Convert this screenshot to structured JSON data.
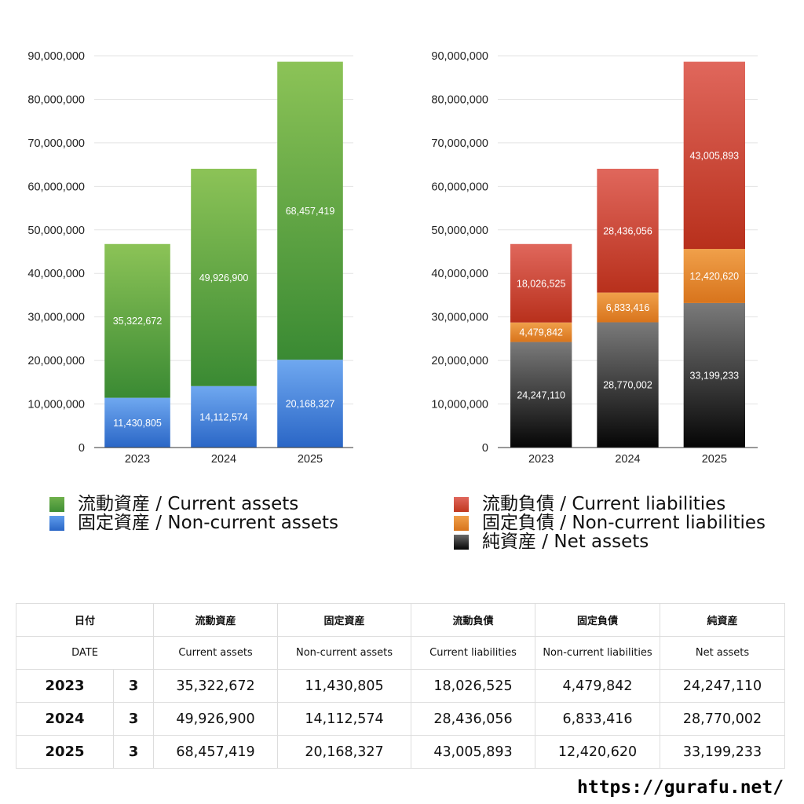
{
  "chart_data": [
    {
      "type": "bar",
      "stacked": true,
      "categories": [
        "2023",
        "2024",
        "2025"
      ],
      "ylim": [
        0,
        90000000
      ],
      "yticks": [
        "0",
        "10,000,000",
        "20,000,000",
        "30,000,000",
        "40,000,000",
        "50,000,000",
        "60,000,000",
        "70,000,000",
        "80,000,000",
        "90,000,000"
      ],
      "grid": true,
      "series": [
        {
          "name": "固定資産 / Non-current assets",
          "values": [
            11430805,
            14112574,
            20168327
          ],
          "labels": [
            "11,430,805",
            "14,112,574",
            "20,168,327"
          ],
          "color_top": "#6fa8f0",
          "color_bottom": "#2a66c6"
        },
        {
          "name": "流動資産 / Current assets",
          "values": [
            35322672,
            49926900,
            68457419
          ],
          "labels": [
            "35,322,672",
            "49,926,900",
            "68,457,419"
          ],
          "color_top": "#8cc357",
          "color_bottom": "#3a8a33"
        }
      ]
    },
    {
      "type": "bar",
      "stacked": true,
      "categories": [
        "2023",
        "2024",
        "2025"
      ],
      "ylim": [
        0,
        90000000
      ],
      "yticks": [
        "0",
        "10,000,000",
        "20,000,000",
        "30,000,000",
        "40,000,000",
        "50,000,000",
        "60,000,000",
        "70,000,000",
        "80,000,000",
        "90,000,000"
      ],
      "grid": true,
      "series": [
        {
          "name": "純資産 / Net assets",
          "values": [
            24247110,
            28770002,
            33199233
          ],
          "labels": [
            "24,247,110",
            "28,770,002",
            "33,199,233"
          ],
          "color_top": "#7a7a7a",
          "color_bottom": "#050505"
        },
        {
          "name": "固定負債 / Non-current liabilities",
          "values": [
            4479842,
            6833416,
            12420620
          ],
          "labels": [
            "4,479,842",
            "6,833,416",
            "12,420,620"
          ],
          "color_top": "#f0a04a",
          "color_bottom": "#d8741c"
        },
        {
          "name": "流動負債 / Current liabilities",
          "values": [
            18026525,
            28436056,
            43005893
          ],
          "labels": [
            "18,026,525",
            "28,436,056",
            "43,005,893"
          ],
          "color_top": "#e0675c",
          "color_bottom": "#b8301c"
        }
      ]
    }
  ],
  "legend_left": [
    {
      "label": "流動資産 / Current assets",
      "color": "#5aa442"
    },
    {
      "label": "固定資産 / Non-current assets",
      "color": "#3d7fdc"
    }
  ],
  "legend_right": [
    {
      "label": "流動負債 / Current liabilities",
      "color": "#d64a3a"
    },
    {
      "label": "固定負債 / Non-current liabilities",
      "color": "#e8852e"
    },
    {
      "label": "純資産 / Net assets",
      "color": "#2a2a2a"
    }
  ],
  "table": {
    "header_jp": [
      "日付",
      "流動資産",
      "固定資産",
      "流動負債",
      "固定負債",
      "純資産"
    ],
    "header_en": [
      "DATE",
      "Current assets",
      "Non-current assets",
      "Current liabilities",
      "Non-current liabilities",
      "Net assets"
    ],
    "rows": [
      {
        "year": "2023",
        "count": "3",
        "values": [
          "35,322,672",
          "11,430,805",
          "18,026,525",
          "4,479,842",
          "24,247,110"
        ]
      },
      {
        "year": "2024",
        "count": "3",
        "values": [
          "49,926,900",
          "14,112,574",
          "28,436,056",
          "6,833,416",
          "28,770,002"
        ]
      },
      {
        "year": "2025",
        "count": "3",
        "values": [
          "68,457,419",
          "20,168,327",
          "43,005,893",
          "12,420,620",
          "33,199,233"
        ]
      }
    ]
  },
  "source": "https://gurafu.net/"
}
